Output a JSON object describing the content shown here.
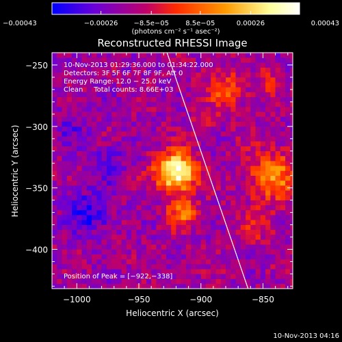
{
  "chart_data": {
    "type": "heatmap",
    "title": "Reconstructed RHESSI Image",
    "xlabel": "Heliocentric X (arcsec)",
    "ylabel": "Heliocentric Y (arcsec)",
    "xlim": [
      -1020,
      -826
    ],
    "ylim": [
      -432,
      -240
    ],
    "x_ticks": [
      -1000,
      -950,
      -900,
      -850
    ],
    "y_ticks": [
      -250,
      -300,
      -350,
      -400
    ],
    "x_tick_labels": [
      "−1000",
      "−950",
      "−900",
      "−850"
    ],
    "y_tick_labels": [
      "−250",
      "−300",
      "−350",
      "−400"
    ],
    "colorbar": {
      "range": [
        -0.00043,
        0.00043
      ],
      "ticks": [
        -0.00043,
        -0.00026,
        -8.5e-05,
        8.5e-05,
        0.00026,
        0.00043
      ],
      "tick_labels": [
        "−0.00043",
        "−0.00026",
        "−8.5e−05",
        "8.5e−05",
        "0.00026",
        "0.00043"
      ],
      "unit_label": "(photons cm⁻² s⁻¹ asec⁻²)",
      "colors": [
        "#0000ff",
        "#6a00d8",
        "#c0006a",
        "#ff2a00",
        "#ff9a00",
        "#ffff9a",
        "#ffffff"
      ]
    },
    "info_lines": [
      "10-Nov-2013 01:29:36.000 to 01:34:22.000",
      "Detectors: 3F 5F 6F 7F 8F 9F, Att 0",
      "Energy Range: 12.0 − 25.0 keV",
      "Clean     Total counts: 8.66E+03"
    ],
    "peak_label": "Position of Peak = [−922,−338]",
    "peak": [
      -922,
      -338
    ],
    "limb_line": [
      [
        -928,
        -238
      ],
      [
        -862,
        -432
      ]
    ],
    "sources": [
      {
        "x": -920,
        "y": -337,
        "sigma": 11,
        "amp": 1.0
      },
      {
        "x": -915,
        "y": -370,
        "sigma": 8,
        "amp": 0.45
      },
      {
        "x": -842,
        "y": -340,
        "sigma": 14,
        "amp": 0.5
      },
      {
        "x": -855,
        "y": -380,
        "sigma": 9,
        "amp": 0.25
      },
      {
        "x": -880,
        "y": -270,
        "sigma": 11,
        "amp": 0.35
      },
      {
        "x": -845,
        "y": -263,
        "sigma": 7,
        "amp": 0.25
      },
      {
        "x": -900,
        "y": -300,
        "sigma": 7,
        "amp": 0.12
      },
      {
        "x": -990,
        "y": -370,
        "sigma": 12,
        "amp": -0.35
      },
      {
        "x": -975,
        "y": -330,
        "sigma": 10,
        "amp": -0.25
      },
      {
        "x": -1005,
        "y": -300,
        "sigma": 10,
        "amp": -0.15
      }
    ]
  },
  "footer": {
    "timestamp": "10-Nov-2013 04:16"
  }
}
